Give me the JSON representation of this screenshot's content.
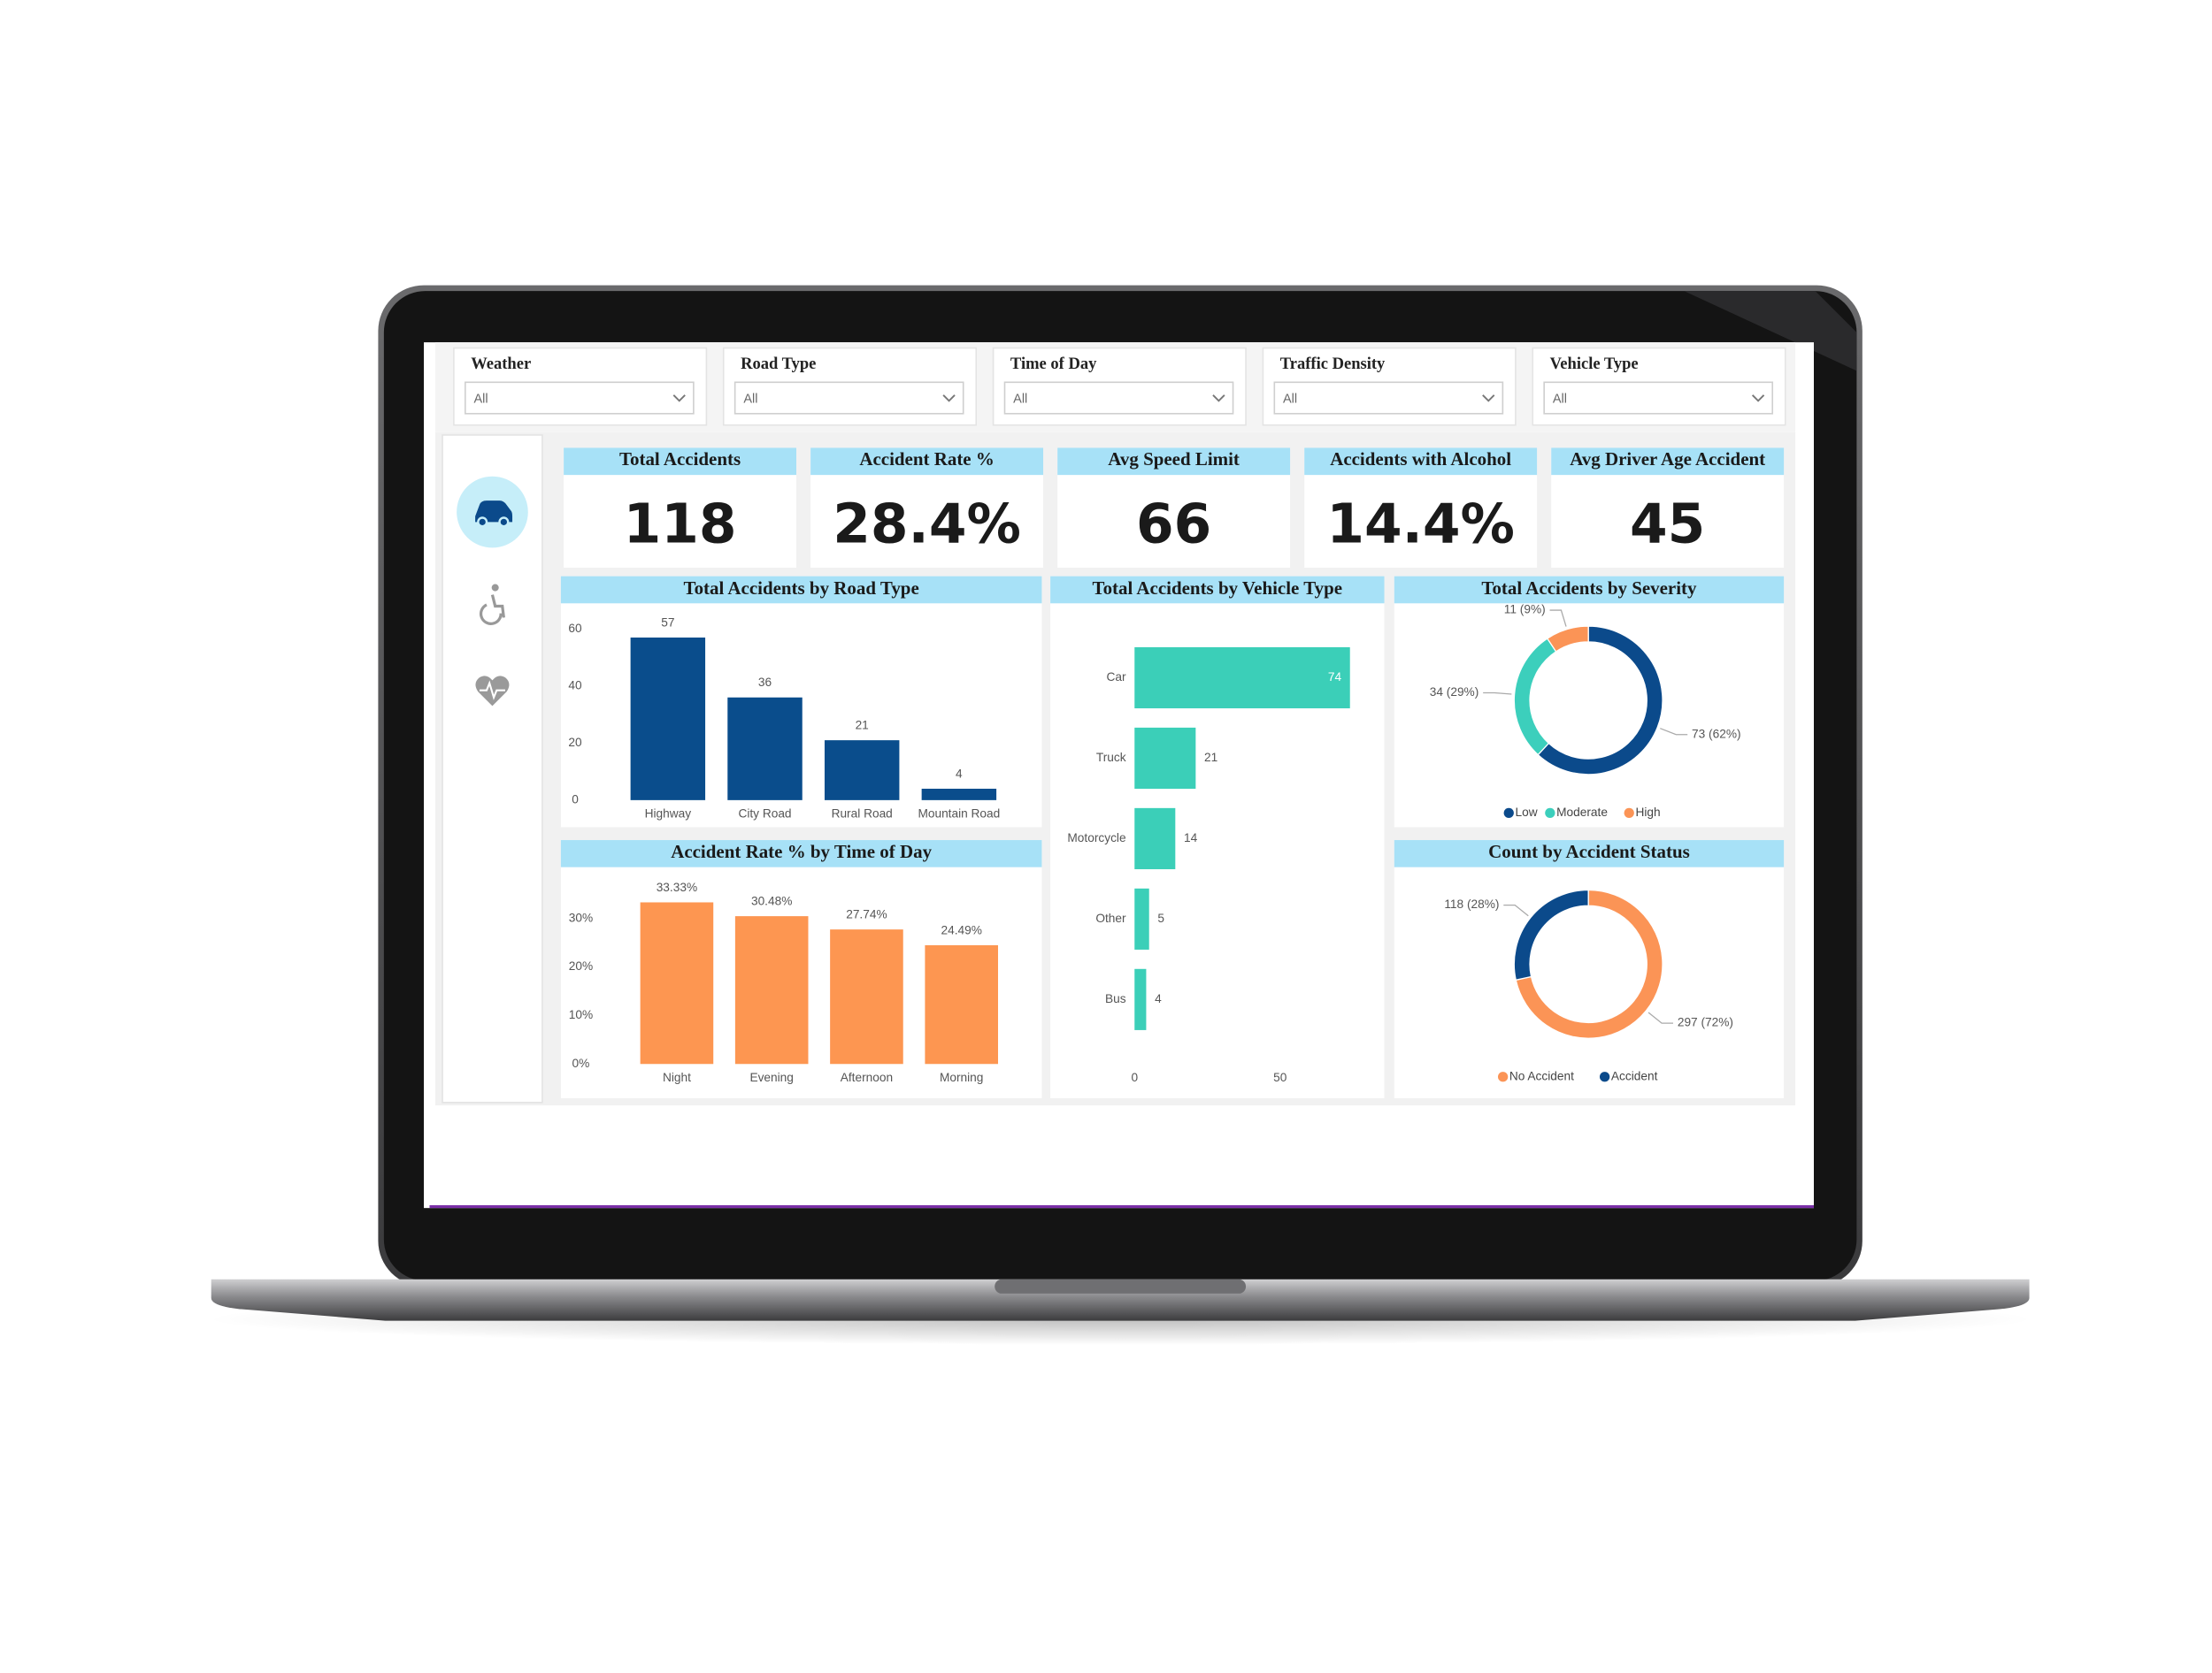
{
  "filters": [
    {
      "label": "Weather",
      "value": "All"
    },
    {
      "label": "Road Type",
      "value": "All"
    },
    {
      "label": "Time of Day",
      "value": "All"
    },
    {
      "label": "Traffic Density",
      "value": "All"
    },
    {
      "label": "Vehicle Type",
      "value": "All"
    }
  ],
  "kpis": [
    {
      "label": "Total Accidents",
      "value": "118"
    },
    {
      "label": "Accident Rate %",
      "value": "28.4%"
    },
    {
      "label": "Avg Speed Limit",
      "value": "66"
    },
    {
      "label": "Accidents with Alcohol",
      "value": "14.4%"
    },
    {
      "label": "Avg Driver Age Accident",
      "value": "45"
    }
  ],
  "chart_data": [
    {
      "type": "bar",
      "title": "Total Accidents by Road Type",
      "categories": [
        "Highway",
        "City Road",
        "Rural Road",
        "Mountain Road"
      ],
      "values": [
        57,
        36,
        21,
        4
      ],
      "color": "#0a4d8c",
      "ylim": [
        0,
        60
      ],
      "yticks": [
        0,
        20,
        40,
        60
      ]
    },
    {
      "type": "bar",
      "title": "Accident Rate % by Time of Day",
      "categories": [
        "Night",
        "Evening",
        "Afternoon",
        "Morning"
      ],
      "values": [
        33.33,
        30.48,
        27.74,
        24.49
      ],
      "value_labels": [
        "33.33%",
        "30.48%",
        "27.74%",
        "24.49%"
      ],
      "color": "#fd9651",
      "ylim": [
        0,
        35
      ],
      "yticks": [
        {
          "value": 0,
          "label": "0%"
        },
        {
          "value": 10,
          "label": "10%"
        },
        {
          "value": 20,
          "label": "20%"
        },
        {
          "value": 30,
          "label": "30%"
        }
      ]
    },
    {
      "type": "barh",
      "title": "Total Accidents by Vehicle Type",
      "categories": [
        "Car",
        "Truck",
        "Motorcycle",
        "Other",
        "Bus"
      ],
      "values": [
        74,
        21,
        14,
        5,
        4
      ],
      "color": "#3bcfb8",
      "xlim": [
        0,
        75
      ],
      "xticks": [
        0,
        50
      ]
    },
    {
      "type": "donut",
      "title": "Total Accidents by Severity",
      "categories": [
        "Low",
        "Moderate",
        "High"
      ],
      "values": [
        73,
        34,
        11
      ],
      "value_labels": [
        "73 (62%)",
        "34 (29%)",
        "11 (9%)"
      ],
      "colors": [
        "#0b4a8b",
        "#3ccfbc",
        "#fb9456"
      ]
    },
    {
      "type": "donut",
      "title": "Count by Accident Status",
      "categories": [
        "No Accident",
        "Accident"
      ],
      "values": [
        297,
        118
      ],
      "value_labels": [
        "297 (72%)",
        "118 (28%)"
      ],
      "colors": [
        "#fb9456",
        "#0b4a8b"
      ]
    }
  ]
}
